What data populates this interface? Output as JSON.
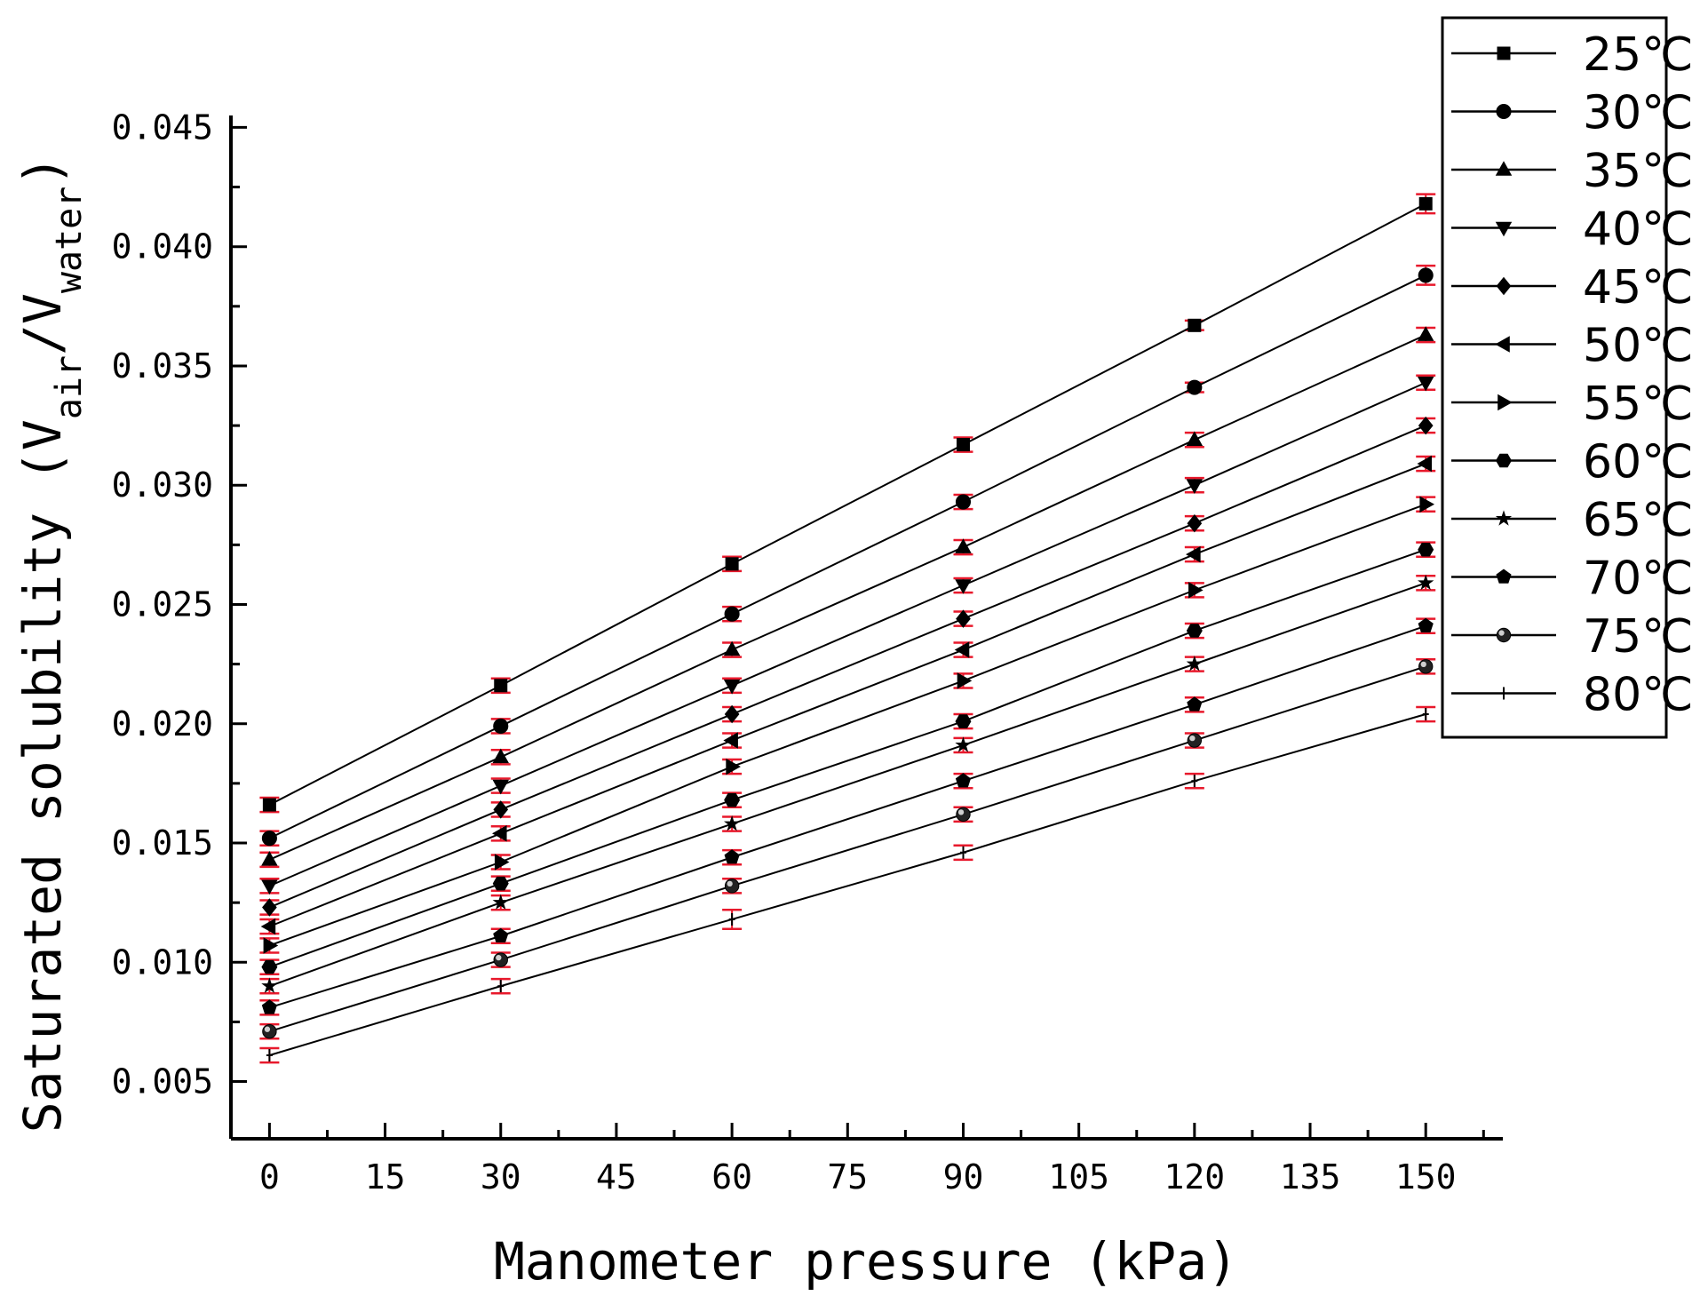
{
  "chart_data": {
    "type": "line",
    "title": "",
    "xlabel": "Manometer pressure (kPa)",
    "ylabel": {
      "prefix": "Saturated solubility (V",
      "sub1": "air",
      "mid": "/V",
      "sub2": "water",
      "suffix": ")"
    },
    "xlim": [
      -5,
      160
    ],
    "ylim": [
      0.0026,
      0.0455
    ],
    "x": [
      0,
      30,
      60,
      90,
      120,
      150
    ],
    "xticks": [
      "0",
      "15",
      "30",
      "45",
      "60",
      "75",
      "90",
      "105",
      "120",
      "135",
      "150"
    ],
    "xtick_values": [
      0,
      15,
      30,
      45,
      60,
      75,
      90,
      105,
      120,
      135,
      150
    ],
    "yticks": [
      "0.005",
      "0.010",
      "0.015",
      "0.020",
      "0.025",
      "0.030",
      "0.035",
      "0.040",
      "0.045"
    ],
    "ytick_values": [
      0.005,
      0.01,
      0.015,
      0.02,
      0.025,
      0.03,
      0.035,
      0.04,
      0.045
    ],
    "errorbar_color": "#e8192c",
    "line_color": "#000000",
    "legend_position": "top-right",
    "series": [
      {
        "name": "25℃",
        "marker": "square",
        "values": [
          0.0166,
          0.0216,
          0.0267,
          0.0317,
          0.0367,
          0.0418
        ],
        "err": [
          0.0003,
          0.0003,
          0.0003,
          0.0003,
          0.0002,
          0.0004
        ]
      },
      {
        "name": "30℃",
        "marker": "circle",
        "values": [
          0.0152,
          0.0199,
          0.0246,
          0.0293,
          0.0341,
          0.0388
        ],
        "err": [
          0.0003,
          0.0003,
          0.0003,
          0.0003,
          0.0002,
          0.0004
        ]
      },
      {
        "name": "35℃",
        "marker": "triangle-up",
        "values": [
          0.0143,
          0.0186,
          0.0231,
          0.0274,
          0.0319,
          0.0363
        ],
        "err": [
          0.0003,
          0.0003,
          0.0003,
          0.0003,
          0.0003,
          0.0003
        ]
      },
      {
        "name": "40℃",
        "marker": "triangle-down",
        "values": [
          0.0132,
          0.0174,
          0.0216,
          0.0258,
          0.03,
          0.0343
        ],
        "err": [
          0.0003,
          0.0003,
          0.0003,
          0.0003,
          0.0003,
          0.0003
        ]
      },
      {
        "name": "45℃",
        "marker": "diamond",
        "values": [
          0.0123,
          0.0164,
          0.0204,
          0.0244,
          0.0284,
          0.0325
        ],
        "err": [
          0.0003,
          0.0003,
          0.0003,
          0.0003,
          0.0003,
          0.0003
        ]
      },
      {
        "name": "50℃",
        "marker": "triangle-left",
        "values": [
          0.0115,
          0.0154,
          0.0193,
          0.0231,
          0.0271,
          0.0309
        ],
        "err": [
          0.0003,
          0.0003,
          0.0003,
          0.0003,
          0.0003,
          0.0003
        ]
      },
      {
        "name": "55℃",
        "marker": "triangle-right",
        "values": [
          0.0107,
          0.0142,
          0.0182,
          0.0218,
          0.0256,
          0.0292
        ],
        "err": [
          0.0003,
          0.0003,
          0.0003,
          0.0003,
          0.0003,
          0.0003
        ]
      },
      {
        "name": "60℃",
        "marker": "hexagon",
        "values": [
          0.0098,
          0.0133,
          0.0168,
          0.0201,
          0.0239,
          0.0273
        ],
        "err": [
          0.0003,
          0.0003,
          0.0003,
          0.0003,
          0.0003,
          0.0003
        ]
      },
      {
        "name": "65℃",
        "marker": "star",
        "values": [
          0.009,
          0.0125,
          0.0158,
          0.0191,
          0.0225,
          0.0259
        ],
        "err": [
          0.0003,
          0.0003,
          0.0003,
          0.0003,
          0.0003,
          0.0003
        ]
      },
      {
        "name": "70℃",
        "marker": "pentagon",
        "values": [
          0.0081,
          0.0111,
          0.0144,
          0.0176,
          0.0208,
          0.0241
        ],
        "err": [
          0.0003,
          0.0003,
          0.0003,
          0.0003,
          0.0003,
          0.0003
        ]
      },
      {
        "name": "75℃",
        "marker": "sphere",
        "values": [
          0.0071,
          0.0101,
          0.0132,
          0.0162,
          0.0193,
          0.0224
        ],
        "err": [
          0.0003,
          0.0003,
          0.0003,
          0.0003,
          0.0003,
          0.0003
        ]
      },
      {
        "name": "80℃",
        "marker": "plus",
        "values": [
          0.0061,
          0.009,
          0.0118,
          0.0146,
          0.0176,
          0.0204
        ],
        "err": [
          0.0003,
          0.0003,
          0.0004,
          0.0003,
          0.0003,
          0.0003
        ]
      }
    ]
  }
}
